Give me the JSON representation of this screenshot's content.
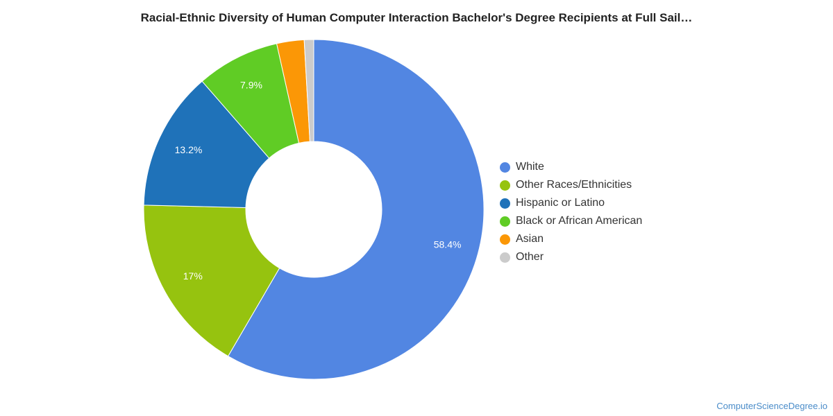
{
  "chart_data": {
    "type": "pie",
    "title": "Racial-Ethnic Diversity of Human Computer Interaction Bachelor's Degree Recipients at Full Sail…",
    "donut": true,
    "legend_position": "right",
    "slices": [
      {
        "name": "White",
        "value": 58.4,
        "label": "58.4%",
        "color": "#5286e2"
      },
      {
        "name": "Other Races/Ethnicities",
        "value": 17.0,
        "label": "17%",
        "color": "#96c30f"
      },
      {
        "name": "Hispanic or Latino",
        "value": 13.2,
        "label": "13.2%",
        "color": "#1f72b9"
      },
      {
        "name": "Black or African American",
        "value": 7.9,
        "label": "7.9%",
        "color": "#60cc25"
      },
      {
        "name": "Asian",
        "value": 2.6,
        "label": "",
        "color": "#fb9706"
      },
      {
        "name": "Other",
        "value": 0.9,
        "label": "",
        "color": "#cbcbcb"
      }
    ]
  },
  "footer": {
    "credit": "ComputerScienceDegree.io"
  }
}
